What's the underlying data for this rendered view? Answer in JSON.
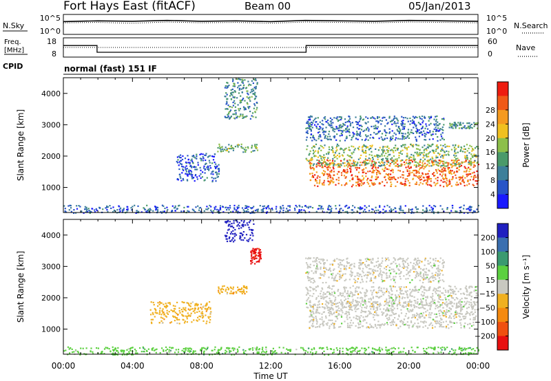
{
  "header": {
    "station": "Fort Hays East (fitACF)",
    "beam": "Beam 00",
    "date": "05/Jan/2013"
  },
  "labels": {
    "nsky": "N.Sky",
    "nsearch": "N.Search",
    "freq_line1": "Freq.",
    "freq_line2": "[MHz]",
    "nave": "Nave",
    "cpid": "CPID",
    "cpid_value": "normal (fast) 151 IF",
    "noise_ticks_left": [
      "10^5",
      "10^0"
    ],
    "noise_ticks_right": [
      "10^5",
      "10^0"
    ],
    "freq_ticks_left": [
      "18",
      "8"
    ],
    "nave_ticks_right": [
      "60",
      "0"
    ]
  },
  "chart_data": [
    {
      "type": "line",
      "panel": "noise",
      "series": [
        {
          "name": "N.Sky",
          "style": "solid",
          "values": [
            3.2,
            3.4,
            3.3,
            3.5,
            3.3,
            3.4,
            3.2,
            3.5,
            3.4,
            3.3,
            3.5,
            3.4,
            3.3
          ]
        },
        {
          "name": "N.Search",
          "style": "dotted",
          "values": [
            2.9,
            3.0,
            2.8,
            3.1,
            2.9,
            3.0,
            2.8,
            3.1,
            3.0,
            2.9,
            3.1,
            3.0,
            2.9
          ]
        }
      ],
      "x": [
        0,
        2,
        4,
        6,
        8,
        10,
        12,
        14,
        16,
        18,
        20,
        22,
        24
      ],
      "ylim": [
        0,
        5
      ]
    },
    {
      "type": "line",
      "panel": "frequency",
      "series": [
        {
          "name": "Freq.",
          "style": "solid",
          "x": [
            0,
            1.95,
            1.95,
            14.05,
            14.05,
            24
          ],
          "values": [
            14,
            14,
            10.5,
            10.5,
            14,
            14
          ]
        },
        {
          "name": "Nave",
          "style": "dotted",
          "x": [
            0,
            24
          ],
          "values": [
            13,
            13
          ]
        }
      ],
      "ylim": [
        8,
        18
      ],
      "y2lim": [
        0,
        60
      ]
    },
    {
      "type": "heatmap",
      "panel": "power",
      "xlabel": "",
      "ylabel": "Slant Range [km]",
      "xlim": [
        0,
        24
      ],
      "ylim": [
        200,
        4500
      ],
      "yticks": [
        1000,
        2000,
        3000,
        4000
      ],
      "colorbar": {
        "label": "Power [dB]",
        "ticks": [
          "4",
          "8",
          "12",
          "16",
          "20",
          "24",
          "28"
        ],
        "colors": [
          "#1a1aff",
          "#2855c8",
          "#3d7f9a",
          "#4a9a6a",
          "#8dbf4a",
          "#f0c020",
          "#f59a20",
          "#f05a18",
          "#ee1c10"
        ]
      },
      "regions": [
        {
          "t0": 14.2,
          "t1": 24,
          "r0": 1050,
          "r1": 1900,
          "level": 0.85
        },
        {
          "t0": 14.0,
          "t1": 24,
          "r0": 1700,
          "r1": 2400,
          "level": 0.45
        },
        {
          "t0": 14.0,
          "t1": 22,
          "r0": 2500,
          "r1": 3300,
          "level": 0.2
        },
        {
          "t0": 8.9,
          "t1": 11.2,
          "r0": 2150,
          "r1": 2400,
          "level": 0.4
        },
        {
          "t0": 9.3,
          "t1": 11.2,
          "r0": 3200,
          "r1": 4500,
          "level": 0.3
        },
        {
          "t0": 6.5,
          "t1": 9,
          "r0": 1200,
          "r1": 2100,
          "level": 0.15
        },
        {
          "t0": 22.3,
          "t1": 24,
          "r0": 2900,
          "r1": 3100,
          "level": 0.35
        },
        {
          "t0": 0,
          "t1": 24,
          "r0": 200,
          "r1": 450,
          "level": 0.15
        }
      ]
    },
    {
      "type": "heatmap",
      "panel": "velocity",
      "xlabel": "Time UT",
      "ylabel": "Slant Range [km]",
      "xlim": [
        0,
        24
      ],
      "ylim": [
        200,
        4500
      ],
      "yticks": [
        1000,
        2000,
        3000,
        4000
      ],
      "xticks": [
        "00:00",
        "04:00",
        "08:00",
        "12:00",
        "16:00",
        "20:00",
        "00:00"
      ],
      "colorbar": {
        "label": "Velocity [m s⁻¹]",
        "ticks": [
          "200",
          "100",
          "50",
          "15",
          "−15",
          "−50",
          "−100",
          "−200"
        ],
        "colors": [
          "#2020c0",
          "#3a6fb0",
          "#3a9a70",
          "#5cd040",
          "#c8c8c0",
          "#f0b020",
          "#f58a10",
          "#f05010",
          "#e81010"
        ]
      },
      "regions": [
        {
          "t0": 14.2,
          "t1": 24,
          "r0": 1050,
          "r1": 1900,
          "level": "ground"
        },
        {
          "t0": 14.0,
          "t1": 24,
          "r0": 1700,
          "r1": 2400,
          "level": "ground"
        },
        {
          "t0": 14.0,
          "t1": 22,
          "r0": 2500,
          "r1": 3300,
          "level": "ground"
        },
        {
          "t0": 8.9,
          "t1": 10.6,
          "r0": 2150,
          "r1": 2400,
          "level": "neg50"
        },
        {
          "t0": 10.8,
          "t1": 11.4,
          "r0": 3100,
          "r1": 3600,
          "level": "neg200"
        },
        {
          "t0": 9.3,
          "t1": 11.0,
          "r0": 3800,
          "r1": 4500,
          "level": "pos200"
        },
        {
          "t0": 5.0,
          "t1": 8.5,
          "r0": 1200,
          "r1": 1900,
          "level": "neg50"
        },
        {
          "t0": 0,
          "t1": 24,
          "r0": 200,
          "r1": 450,
          "level": "pos15"
        }
      ]
    }
  ]
}
